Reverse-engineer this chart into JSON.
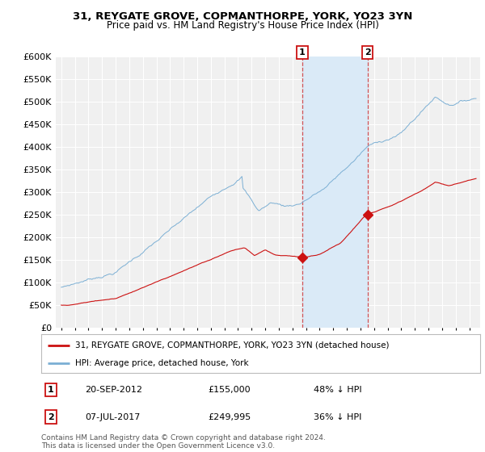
{
  "title1": "31, REYGATE GROVE, COPMANTHORPE, YORK, YO23 3YN",
  "title2": "Price paid vs. HM Land Registry's House Price Index (HPI)",
  "legend_label_red": "31, REYGATE GROVE, COPMANTHORPE, YORK, YO23 3YN (detached house)",
  "legend_label_blue": "HPI: Average price, detached house, York",
  "annotation1_label": "1",
  "annotation1_date": "20-SEP-2012",
  "annotation1_price": "£155,000",
  "annotation1_hpi": "48% ↓ HPI",
  "annotation2_label": "2",
  "annotation2_date": "07-JUL-2017",
  "annotation2_price": "£249,995",
  "annotation2_hpi": "36% ↓ HPI",
  "footnote": "Contains HM Land Registry data © Crown copyright and database right 2024.\nThis data is licensed under the Open Government Licence v3.0.",
  "sale1_year": 2012.72,
  "sale2_year": 2017.51,
  "sale1_value": 155000,
  "sale2_value": 249995,
  "ylim": [
    0,
    600000
  ],
  "yticks": [
    0,
    50000,
    100000,
    150000,
    200000,
    250000,
    300000,
    350000,
    400000,
    450000,
    500000,
    550000,
    600000
  ],
  "background_color": "#ffffff",
  "plot_bg_color": "#f0f0f0",
  "grid_color": "#ffffff",
  "blue_color": "#7bafd4",
  "red_color": "#cc1111",
  "shade_color": "#daeaf7"
}
